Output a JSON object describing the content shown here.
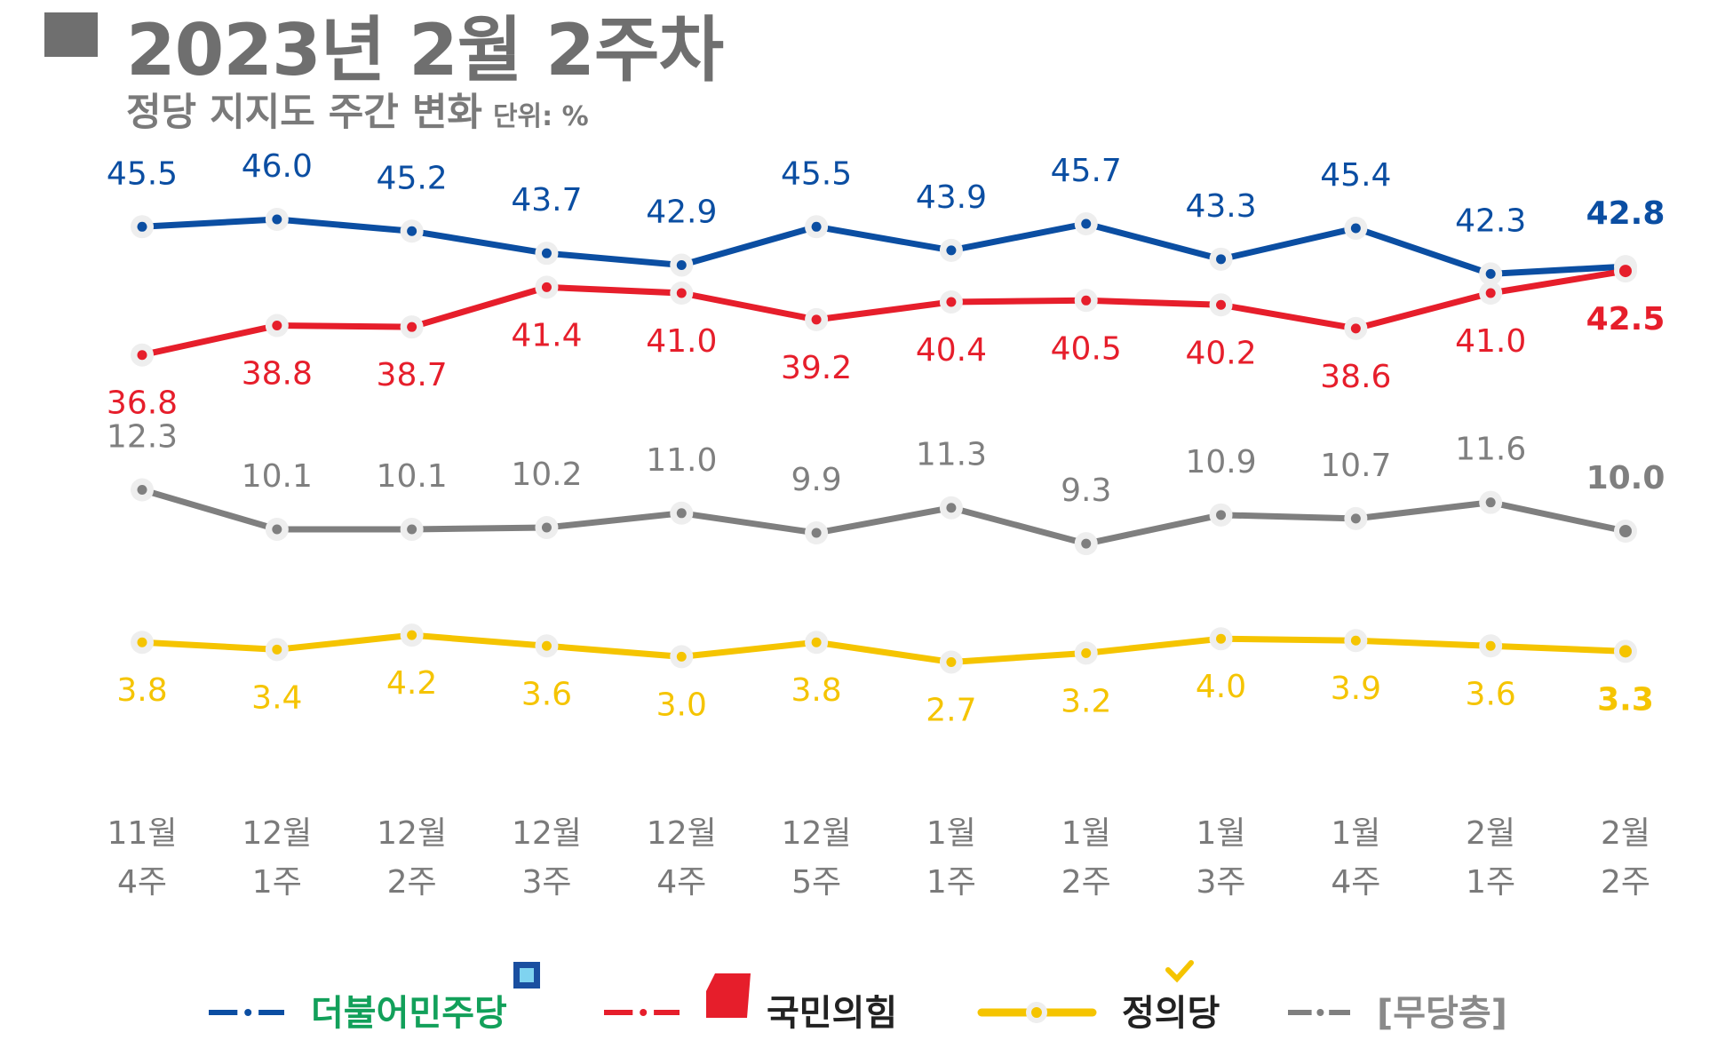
{
  "header": {
    "title": "2023년 2월 2주차",
    "subtitle": "정당 지지도 주간 변화",
    "unit": "단위: %"
  },
  "chart_data": {
    "type": "line",
    "title": "2023년 2월 2주차",
    "subtitle": "정당 지지도 주간 변화",
    "unit": "단위: %",
    "categories": [
      [
        "11월",
        "4주"
      ],
      [
        "12월",
        "1주"
      ],
      [
        "12월",
        "2주"
      ],
      [
        "12월",
        "3주"
      ],
      [
        "12월",
        "4주"
      ],
      [
        "12월",
        "5주"
      ],
      [
        "1월",
        "1주"
      ],
      [
        "1월",
        "2주"
      ],
      [
        "1월",
        "3주"
      ],
      [
        "1월",
        "4주"
      ],
      [
        "2월",
        "1주"
      ],
      [
        "2월",
        "2주"
      ]
    ],
    "series": [
      {
        "name": "더불어민주당",
        "color": "#0b4ea2",
        "label_position": "above",
        "values": [
          45.5,
          46.0,
          45.2,
          43.7,
          42.9,
          45.5,
          43.9,
          45.7,
          43.3,
          45.4,
          42.3,
          42.8
        ],
        "labels": [
          "45.5",
          "46.0",
          "45.2",
          "43.7",
          "42.9",
          "45.5",
          "43.9",
          "45.7",
          "43.3",
          "45.4",
          "42.3",
          "42.8"
        ]
      },
      {
        "name": "국민의힘",
        "color": "#e61e2b",
        "label_position": "below",
        "values": [
          36.8,
          38.8,
          38.7,
          41.4,
          41.0,
          39.2,
          40.4,
          40.5,
          40.2,
          38.6,
          41.0,
          42.5
        ],
        "labels": [
          "36.8",
          "38.8",
          "38.7",
          "41.4",
          "41.0",
          "39.2",
          "40.4",
          "40.5",
          "40.2",
          "38.6",
          "41.0",
          "42.5"
        ]
      },
      {
        "name": "[무당층]",
        "color": "#7f7f7f",
        "label_position": "above",
        "values": [
          12.3,
          10.1,
          10.1,
          10.2,
          11.0,
          9.9,
          11.3,
          9.3,
          10.9,
          10.7,
          11.6,
          10.0
        ],
        "labels": [
          "12.3",
          "10.1",
          "10.1",
          "10.2",
          "11.0",
          "9.9",
          "11.3",
          "9.3",
          "10.9",
          "10.7",
          "11.6",
          "10.0"
        ]
      },
      {
        "name": "정의당",
        "color": "#f5c400",
        "label_position": "below",
        "values": [
          3.8,
          3.4,
          4.2,
          3.6,
          3.0,
          3.8,
          2.7,
          3.2,
          4.0,
          3.9,
          3.6,
          3.3
        ],
        "labels": [
          "3.8",
          "3.4",
          "4.2",
          "3.6",
          "3.0",
          "3.8",
          "2.7",
          "3.2",
          "4.0",
          "3.9",
          "3.6",
          "3.3"
        ]
      }
    ],
    "legend": {
      "placement": "bottom",
      "items": [
        "더불어민주당",
        "국민의힘",
        "정의당",
        "[무당층]"
      ]
    },
    "grid": false
  }
}
